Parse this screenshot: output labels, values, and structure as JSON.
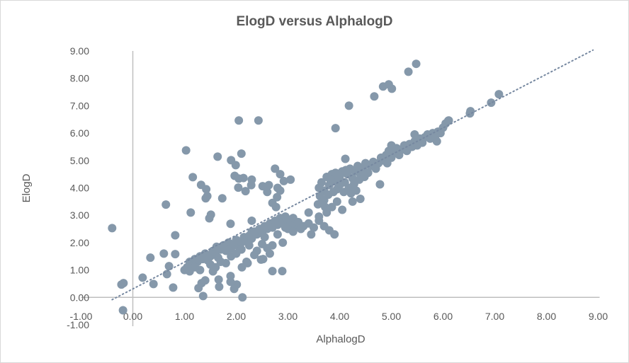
{
  "chart_data": {
    "type": "scatter",
    "title": "ElogD versus AlphalogD",
    "xlabel": "AlphalogD",
    "ylabel": "ElogD",
    "xlim": [
      -1,
      9
    ],
    "ylim": [
      -1,
      9
    ],
    "xticks": [
      "-1.00",
      "0.00",
      "1.00",
      "2.00",
      "3.00",
      "4.00",
      "5.00",
      "6.00",
      "7.00",
      "8.00",
      "9.00"
    ],
    "yticks": [
      "-1.00",
      "0.00",
      "1.00",
      "2.00",
      "3.00",
      "4.00",
      "5.00",
      "6.00",
      "7.00",
      "8.00",
      "9.00"
    ],
    "grid": false,
    "legend": "none",
    "marker_color": "#8598aa",
    "trendline": {
      "type": "linear",
      "slope": 0.98,
      "intercept": 0.31,
      "x_range": [
        -0.4,
        8.9
      ],
      "style": "dotted"
    },
    "points": [
      [
        -0.4,
        2.53
      ],
      [
        -0.22,
        0.47
      ],
      [
        -0.18,
        0.52
      ],
      [
        -0.19,
        -0.47
      ],
      [
        0.19,
        0.72
      ],
      [
        0.34,
        1.45
      ],
      [
        0.4,
        0.49
      ],
      [
        0.6,
        1.6
      ],
      [
        0.64,
        3.39
      ],
      [
        0.66,
        0.85
      ],
      [
        0.7,
        1.14
      ],
      [
        0.78,
        0.36
      ],
      [
        0.82,
        2.27
      ],
      [
        0.82,
        1.58
      ],
      [
        1.03,
        5.37
      ],
      [
        1.12,
        3.1
      ],
      [
        1.16,
        4.39
      ],
      [
        1.32,
        4.11
      ],
      [
        1.42,
        3.95
      ],
      [
        1.41,
        3.62
      ],
      [
        1.44,
        3.7
      ],
      [
        1.48,
        2.89
      ],
      [
        1.51,
        3.02
      ],
      [
        1.33,
        0.52
      ],
      [
        1.27,
        0.34
      ],
      [
        1.4,
        0.62
      ],
      [
        1.36,
        0.05
      ],
      [
        1.66,
        0.65
      ],
      [
        1.67,
        0.39
      ],
      [
        1.64,
        5.14
      ],
      [
        1.73,
        3.62
      ],
      [
        1.89,
        2.69
      ],
      [
        1.9,
        5.01
      ],
      [
        1.99,
        4.83
      ],
      [
        2.1,
        5.25
      ],
      [
        2.05,
        6.46
      ],
      [
        2.43,
        6.46
      ],
      [
        1.97,
        4.44
      ],
      [
        2.05,
        4.34
      ],
      [
        2.04,
        4.01
      ],
      [
        2.18,
        3.88
      ],
      [
        2.14,
        4.36
      ],
      [
        2.3,
        4.3
      ],
      [
        2.29,
        4.1
      ],
      [
        2.51,
        4.06
      ],
      [
        2.3,
        2.8
      ],
      [
        2.3,
        2.4
      ],
      [
        1.89,
        0.57
      ],
      [
        2.01,
        0.47
      ],
      [
        1.89,
        0.78
      ],
      [
        1.96,
        0.31
      ],
      [
        2.12,
        0.0
      ],
      [
        2.11,
        1.1
      ],
      [
        2.22,
        1.25
      ],
      [
        2.48,
        1.38
      ],
      [
        2.52,
        1.4
      ],
      [
        2.7,
        0.96
      ],
      [
        2.89,
        0.96
      ],
      [
        2.77,
        3.3
      ],
      [
        2.79,
        3.66
      ],
      [
        2.63,
        4.1
      ],
      [
        2.75,
        4.7
      ],
      [
        2.85,
        4.5
      ],
      [
        2.92,
        4.25
      ],
      [
        3.05,
        4.3
      ],
      [
        2.85,
        3.9
      ],
      [
        2.8,
        4.0
      ],
      [
        2.6,
        3.85
      ],
      [
        2.7,
        3.45
      ],
      [
        1.0,
        1.0
      ],
      [
        1.05,
        1.1
      ],
      [
        1.1,
        1.3
      ],
      [
        1.15,
        1.2
      ],
      [
        1.2,
        1.4
      ],
      [
        1.25,
        1.3
      ],
      [
        1.3,
        1.5
      ],
      [
        1.35,
        1.4
      ],
      [
        1.4,
        1.6
      ],
      [
        1.45,
        1.35
      ],
      [
        1.5,
        1.5
      ],
      [
        1.55,
        1.7
      ],
      [
        1.6,
        1.6
      ],
      [
        1.62,
        1.85
      ],
      [
        1.65,
        1.45
      ],
      [
        1.7,
        1.75
      ],
      [
        1.75,
        1.9
      ],
      [
        1.8,
        1.7
      ],
      [
        1.85,
        2.0
      ],
      [
        1.9,
        1.8
      ],
      [
        1.95,
        1.95
      ],
      [
        2.0,
        2.1
      ],
      [
        2.05,
        1.85
      ],
      [
        2.1,
        2.0
      ],
      [
        2.15,
        2.2
      ],
      [
        2.2,
        2.05
      ],
      [
        2.25,
        2.25
      ],
      [
        2.3,
        2.15
      ],
      [
        2.35,
        2.4
      ],
      [
        2.4,
        2.3
      ],
      [
        2.45,
        2.5
      ],
      [
        2.5,
        2.35
      ],
      [
        2.55,
        2.6
      ],
      [
        2.6,
        2.5
      ],
      [
        2.65,
        2.7
      ],
      [
        2.7,
        2.55
      ],
      [
        2.75,
        2.8
      ],
      [
        2.8,
        2.65
      ],
      [
        2.85,
        2.9
      ],
      [
        2.9,
        2.75
      ],
      [
        2.95,
        2.95
      ],
      [
        3.0,
        2.8
      ],
      [
        3.05,
        2.7
      ],
      [
        3.1,
        2.9
      ],
      [
        3.15,
        2.6
      ],
      [
        3.2,
        2.75
      ],
      [
        3.3,
        2.6
      ],
      [
        3.4,
        2.7
      ],
      [
        3.5,
        2.55
      ],
      [
        3.6,
        2.8
      ],
      [
        3.7,
        2.6
      ],
      [
        3.8,
        2.45
      ],
      [
        3.9,
        2.3
      ],
      [
        3.6,
        2.95
      ],
      [
        3.75,
        3.1
      ],
      [
        3.85,
        3.3
      ],
      [
        3.95,
        3.5
      ],
      [
        4.05,
        3.2
      ],
      [
        3.45,
        2.3
      ],
      [
        3.58,
        3.4
      ],
      [
        3.4,
        3.1
      ],
      [
        1.3,
        1.0
      ],
      [
        1.5,
        1.2
      ],
      [
        1.6,
        1.1
      ],
      [
        1.9,
        1.5
      ],
      [
        2.2,
        1.3
      ],
      [
        2.4,
        1.7
      ],
      [
        2.6,
        1.8
      ],
      [
        2.7,
        1.9
      ],
      [
        2.9,
        2.0
      ],
      [
        2.5,
        1.95
      ],
      [
        2.65,
        1.6
      ],
      [
        1.7,
        1.3
      ],
      [
        1.8,
        1.25
      ],
      [
        1.55,
        0.95
      ],
      [
        1.2,
        1.1
      ],
      [
        1.1,
        0.95
      ],
      [
        2.0,
        1.6
      ],
      [
        2.35,
        1.55
      ],
      [
        2.55,
        2.2
      ],
      [
        2.8,
        2.3
      ],
      [
        3.0,
        2.5
      ],
      [
        3.1,
        2.4
      ],
      [
        3.25,
        2.5
      ],
      [
        2.95,
        2.55
      ],
      [
        2.25,
        1.9
      ],
      [
        2.1,
        1.75
      ],
      [
        3.6,
        4.0
      ],
      [
        3.65,
        4.2
      ],
      [
        3.7,
        3.9
      ],
      [
        3.75,
        4.4
      ],
      [
        3.8,
        4.1
      ],
      [
        3.85,
        4.5
      ],
      [
        3.9,
        4.25
      ],
      [
        3.95,
        3.95
      ],
      [
        4.0,
        4.4
      ],
      [
        4.05,
        4.6
      ],
      [
        4.1,
        4.2
      ],
      [
        4.15,
        4.5
      ],
      [
        4.2,
        4.7
      ],
      [
        4.25,
        4.35
      ],
      [
        4.3,
        4.6
      ],
      [
        4.35,
        4.8
      ],
      [
        4.4,
        4.5
      ],
      [
        4.45,
        4.7
      ],
      [
        4.5,
        4.9
      ],
      [
        4.55,
        4.55
      ],
      [
        4.6,
        4.8
      ],
      [
        4.65,
        4.95
      ],
      [
        4.7,
        4.7
      ],
      [
        4.75,
        4.9
      ],
      [
        4.8,
        5.1
      ],
      [
        3.62,
        3.7
      ],
      [
        3.7,
        3.55
      ],
      [
        3.78,
        3.75
      ],
      [
        3.88,
        3.85
      ],
      [
        3.98,
        4.05
      ],
      [
        4.08,
        3.85
      ],
      [
        4.18,
        4.0
      ],
      [
        4.28,
        4.15
      ],
      [
        4.38,
        4.3
      ],
      [
        4.48,
        4.4
      ],
      [
        4.02,
        4.15
      ],
      [
        3.92,
        4.55
      ],
      [
        3.82,
        4.3
      ],
      [
        4.12,
        4.65
      ],
      [
        4.22,
        3.8
      ],
      [
        4.32,
        3.9
      ],
      [
        4.4,
        3.6
      ],
      [
        4.25,
        3.5
      ],
      [
        3.72,
        3.3
      ],
      [
        3.65,
        3.45
      ],
      [
        4.85,
        5.0
      ],
      [
        4.9,
        5.2
      ],
      [
        4.95,
        5.35
      ],
      [
        5.0,
        5.1
      ],
      [
        5.05,
        5.3
      ],
      [
        5.1,
        5.45
      ],
      [
        5.15,
        5.2
      ],
      [
        5.2,
        5.4
      ],
      [
        5.25,
        5.55
      ],
      [
        5.3,
        5.35
      ],
      [
        5.35,
        5.6
      ],
      [
        5.4,
        5.5
      ],
      [
        5.45,
        5.7
      ],
      [
        5.5,
        5.55
      ],
      [
        5.55,
        5.8
      ],
      [
        5.6,
        5.65
      ],
      [
        5.65,
        5.85
      ],
      [
        5.7,
        5.95
      ],
      [
        5.75,
        5.8
      ],
      [
        5.8,
        6.0
      ],
      [
        5.85,
        5.9
      ],
      [
        5.9,
        6.05
      ],
      [
        5.95,
        6.0
      ],
      [
        6.0,
        6.2
      ],
      [
        6.05,
        6.35
      ],
      [
        6.1,
        6.45
      ],
      [
        6.11,
        6.46
      ],
      [
        5.88,
        5.7
      ],
      [
        5.45,
        5.95
      ],
      [
        5.0,
        5.55
      ],
      [
        4.92,
        4.9
      ],
      [
        6.53,
        6.8
      ],
      [
        6.52,
        6.72
      ],
      [
        6.93,
        7.11
      ],
      [
        7.08,
        7.42
      ],
      [
        3.92,
        6.18
      ],
      [
        4.18,
        7.0
      ],
      [
        4.67,
        7.34
      ],
      [
        4.84,
        7.7
      ],
      [
        4.95,
        7.78
      ],
      [
        5.01,
        7.62
      ],
      [
        5.33,
        8.24
      ],
      [
        5.48,
        8.53
      ],
      [
        4.11,
        5.06
      ],
      [
        4.78,
        4.13
      ]
    ]
  }
}
